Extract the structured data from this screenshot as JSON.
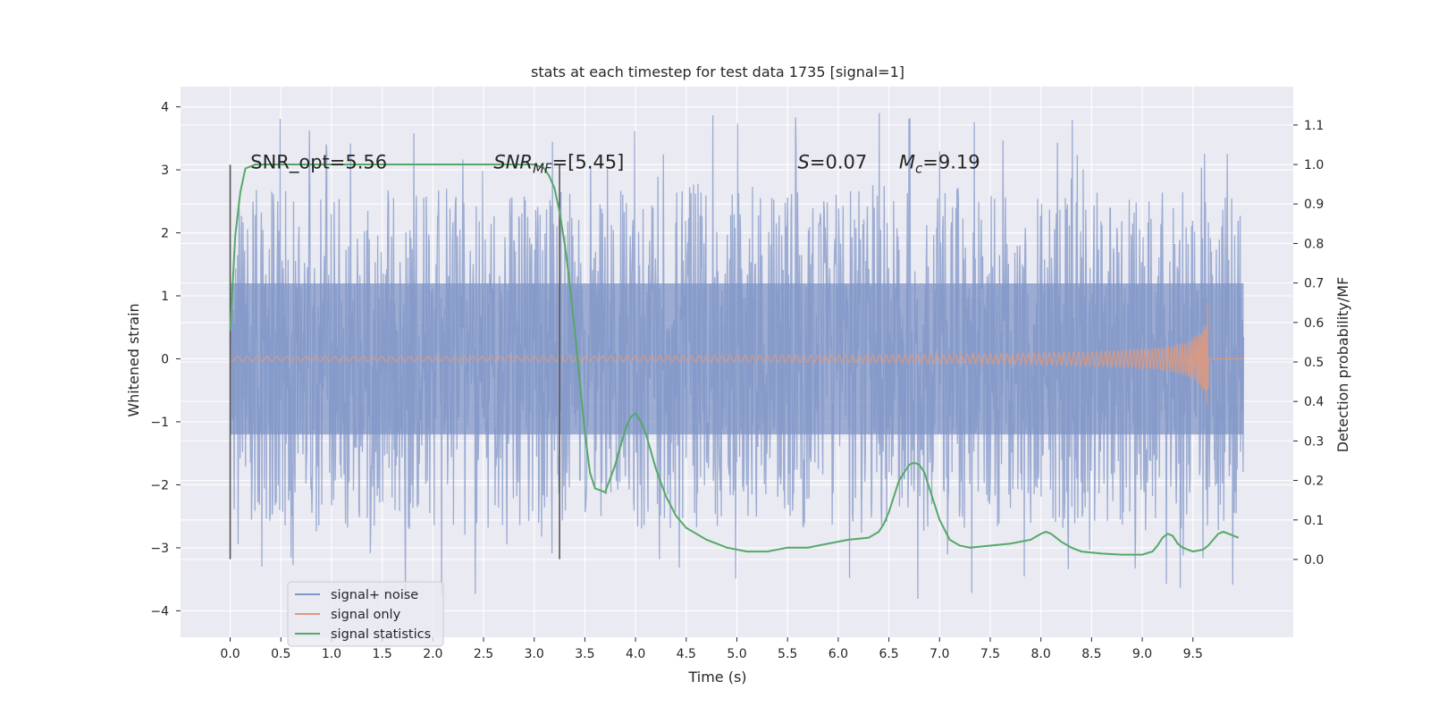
{
  "chart_data": {
    "type": "line",
    "title": "stats at each timestep for test data 1735 [signal=1]",
    "xlabel": "Time (s)",
    "ylabel": "Whitened strain",
    "y2label": "Detection probability/MF",
    "xlim": [
      -0.49,
      10.49
    ],
    "ylim": [
      -4.42,
      4.32
    ],
    "y2lim": [
      -0.197,
      1.197
    ],
    "xticks": [
      0.0,
      0.5,
      1.0,
      1.5,
      2.0,
      2.5,
      3.0,
      3.5,
      4.0,
      4.5,
      5.0,
      5.5,
      6.0,
      6.5,
      7.0,
      7.5,
      8.0,
      8.5,
      9.0,
      9.5
    ],
    "xticklabels": [
      "0.0",
      "0.5",
      "1.0",
      "1.5",
      "2.0",
      "2.5",
      "3.0",
      "3.5",
      "4.0",
      "4.5",
      "5.0",
      "5.5",
      "6.0",
      "6.5",
      "7.0",
      "7.5",
      "8.0",
      "8.5",
      "9.0",
      "9.5"
    ],
    "yticks": [
      4,
      3,
      2,
      1,
      0,
      -1,
      -2,
      -3,
      -4
    ],
    "yticklabels": [
      "4",
      "3",
      "2",
      "1",
      "0",
      "−1",
      "−2",
      "−3",
      "−4"
    ],
    "y2ticks": [
      1.1,
      1.0,
      0.9,
      0.8,
      0.7,
      0.6,
      0.5,
      0.4,
      0.3,
      0.2,
      0.1,
      0.0
    ],
    "y2ticklabels": [
      "1.1",
      "1.0",
      "0.9",
      "0.8",
      "0.7",
      "0.6",
      "0.5",
      "0.4",
      "0.3",
      "0.2",
      "0.1",
      "0.0"
    ],
    "grid": true,
    "legend_position": "lower-left",
    "colors": {
      "noise": "#8096c7",
      "signal": "#dd9a80",
      "stats": "#55a868",
      "vline": "#555555",
      "background": "#eaeaf2",
      "grid": "#ffffff"
    },
    "series": [
      {
        "name": "signal+ noise",
        "axis": "left",
        "x_range": [
          0.0,
          10.0
        ],
        "envelope_typical": [
          -2.8,
          2.5
        ],
        "envelope_extreme": [
          -4.05,
          3.95
        ]
      },
      {
        "name": "signal only",
        "axis": "left",
        "x_range": [
          0.0,
          10.0
        ],
        "merger_time": 9.65,
        "peak_amplitude": [
          -0.85,
          0.9
        ]
      },
      {
        "name": "signal statistics",
        "axis": "right",
        "x": [
          0.0,
          0.05,
          0.1,
          0.15,
          0.25,
          0.5,
          1.0,
          2.0,
          2.5,
          3.0,
          3.1,
          3.15,
          3.2,
          3.25,
          3.3,
          3.35,
          3.4,
          3.45,
          3.5,
          3.55,
          3.6,
          3.7,
          3.8,
          3.9,
          3.95,
          4.0,
          4.05,
          4.1,
          4.2,
          4.3,
          4.4,
          4.5,
          4.7,
          4.9,
          5.1,
          5.3,
          5.5,
          5.7,
          5.9,
          6.1,
          6.3,
          6.4,
          6.45,
          6.5,
          6.6,
          6.7,
          6.75,
          6.8,
          6.85,
          6.9,
          7.0,
          7.1,
          7.2,
          7.3,
          7.5,
          7.7,
          7.9,
          8.0,
          8.05,
          8.1,
          8.2,
          8.3,
          8.4,
          8.6,
          8.8,
          9.0,
          9.1,
          9.15,
          9.2,
          9.25,
          9.3,
          9.35,
          9.4,
          9.5,
          9.6,
          9.65,
          9.7,
          9.75,
          9.8,
          9.85,
          9.9,
          9.95
        ],
        "y": [
          0.58,
          0.82,
          0.93,
          0.99,
          1.0,
          1.0,
          1.0,
          1.0,
          1.0,
          1.0,
          0.99,
          0.97,
          0.94,
          0.88,
          0.8,
          0.7,
          0.58,
          0.45,
          0.32,
          0.22,
          0.18,
          0.17,
          0.24,
          0.33,
          0.36,
          0.37,
          0.35,
          0.32,
          0.23,
          0.16,
          0.11,
          0.08,
          0.05,
          0.03,
          0.02,
          0.02,
          0.03,
          0.03,
          0.04,
          0.05,
          0.055,
          0.07,
          0.09,
          0.12,
          0.2,
          0.24,
          0.245,
          0.24,
          0.22,
          0.18,
          0.1,
          0.05,
          0.035,
          0.03,
          0.035,
          0.04,
          0.05,
          0.065,
          0.07,
          0.065,
          0.045,
          0.03,
          0.02,
          0.015,
          0.012,
          0.012,
          0.02,
          0.035,
          0.055,
          0.065,
          0.06,
          0.04,
          0.03,
          0.02,
          0.025,
          0.035,
          0.05,
          0.065,
          0.07,
          0.065,
          0.06,
          0.055
        ]
      }
    ],
    "vlines": [
      0.0,
      3.25
    ],
    "vline_ylim": [
      -3.18,
      3.08
    ],
    "annotations": [
      {
        "text": "SNR_opt=5.56",
        "x": 0.2,
        "y": 0.99
      },
      {
        "text": "SNR_MF=[5.45]",
        "x": 2.6,
        "y": 0.99
      },
      {
        "text": "S=0.07",
        "x": 5.6,
        "y": 0.99
      },
      {
        "text": "M_c=9.19",
        "x": 6.6,
        "y": 0.99
      }
    ]
  }
}
